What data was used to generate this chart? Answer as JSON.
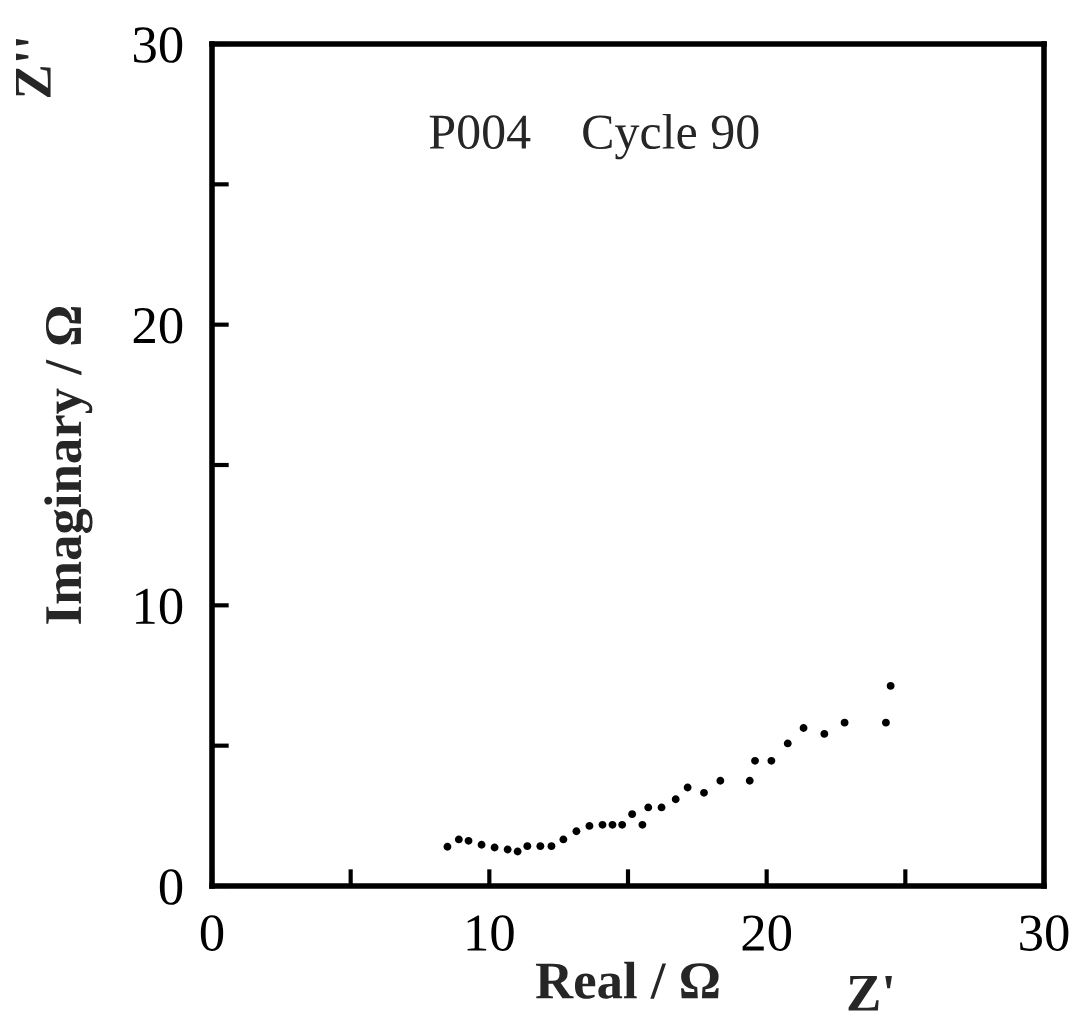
{
  "chart_data": {
    "type": "scatter",
    "xlabel": "Real / Ω",
    "ylabel": "Imaginary / Ω",
    "annotations": [
      "P004    Cycle 90",
      "Z''",
      "Z'"
    ],
    "x": [
      8.49,
      8.9,
      9.25,
      9.72,
      10.19,
      10.66,
      11.02,
      11.37,
      11.84,
      12.24,
      12.67,
      13.14,
      13.61,
      14.08,
      14.44,
      14.79,
      15.15,
      15.52,
      15.73,
      16.21,
      16.72,
      17.15,
      17.74,
      18.33,
      19.39,
      19.58,
      20.17,
      20.76,
      21.33,
      22.08,
      22.81,
      24.3,
      24.47
    ],
    "series": [
      {
        "color": "#000000",
        "values": [
          1.4,
          1.66,
          1.61,
          1.47,
          1.37,
          1.3,
          1.23,
          1.42,
          1.42,
          1.42,
          1.66,
          1.95,
          2.14,
          2.18,
          2.18,
          2.18,
          2.56,
          2.18,
          2.8,
          2.8,
          3.09,
          3.51,
          3.32,
          3.75,
          3.75,
          4.46,
          4.46,
          5.08,
          5.63,
          5.42,
          5.82,
          5.82,
          7.13
        ]
      }
    ],
    "xlim": [
      0,
      30
    ],
    "ylim": [
      0,
      30
    ],
    "xticks": [
      0,
      {
        "value": 5,
        "label": null
      },
      10,
      {
        "value": 15,
        "label": null
      },
      20,
      {
        "value": 25,
        "label": null
      },
      30
    ],
    "yticks": [
      0,
      {
        "value": 5,
        "label": null
      },
      10,
      {
        "value": 15,
        "label": null
      },
      20,
      {
        "value": 25,
        "label": null
      },
      30
    ],
    "marker": "circle",
    "grid": false,
    "legend": false
  }
}
